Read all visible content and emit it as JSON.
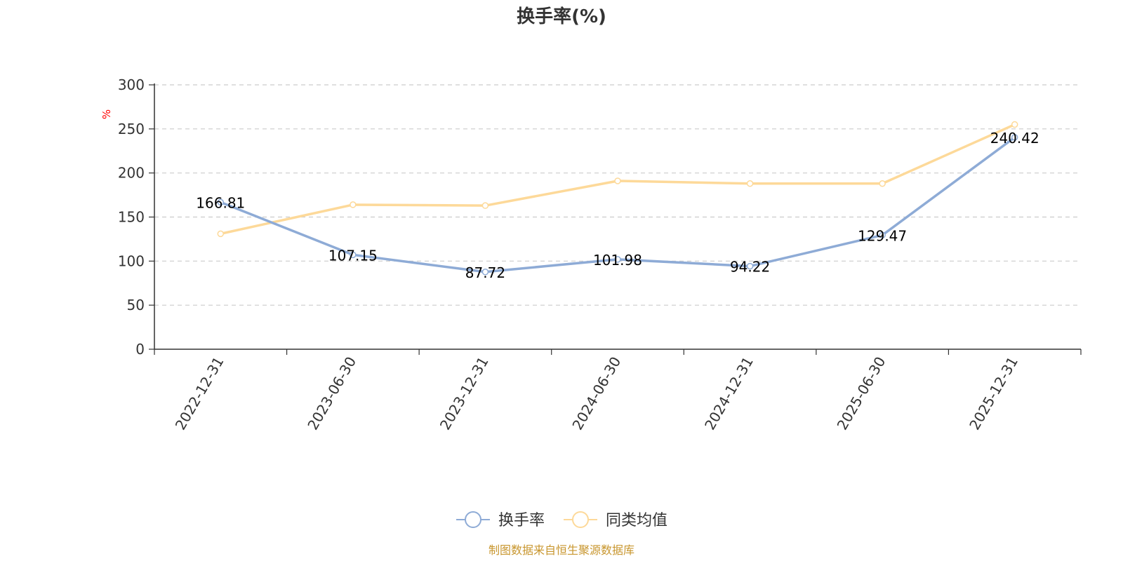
{
  "chart_data": {
    "type": "line",
    "title": "换手率(%)",
    "ylabel": "%",
    "ylim": [
      0,
      300
    ],
    "yticks": [
      0,
      50,
      100,
      150,
      200,
      250,
      300
    ],
    "categories": [
      "2022-12-31",
      "2023-06-30",
      "2023-12-31",
      "2024-06-30",
      "2024-12-31",
      "2025-06-30",
      "2025-12-31"
    ],
    "series": [
      {
        "name": "换手率",
        "color": "#8eabd6",
        "values": [
          166.81,
          107.15,
          87.72,
          101.98,
          94.22,
          129.47,
          240.42
        ],
        "labels": [
          "166.81",
          "107.15",
          "87.72",
          "101.98",
          "94.22",
          "129.47",
          "240.42"
        ]
      },
      {
        "name": "同类均值",
        "color": "#fdd999",
        "values": [
          131,
          164,
          163,
          191,
          188,
          188,
          255
        ]
      }
    ],
    "legend_position": "bottom-center",
    "grid": true
  },
  "source": "制图数据来自恒生聚源数据库"
}
